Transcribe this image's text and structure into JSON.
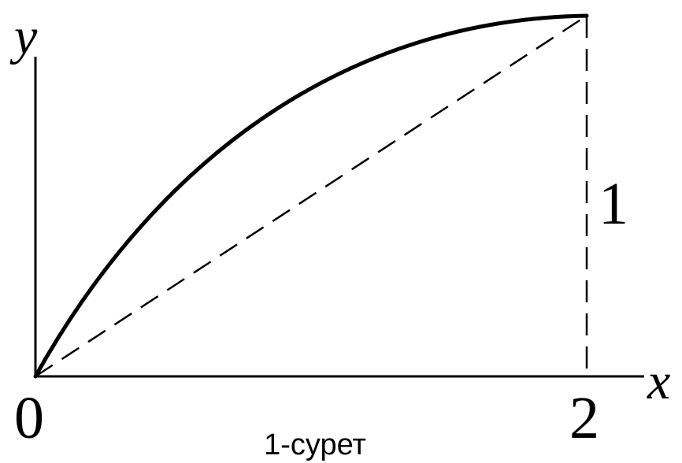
{
  "figure": {
    "axis_x_label": "x",
    "axis_y_label": "y",
    "origin_label": "0",
    "x_tick_label": "2",
    "height_label": "1",
    "caption": "1-сурет"
  },
  "colors": {
    "ink": "#000000",
    "background": "#ffffff"
  }
}
